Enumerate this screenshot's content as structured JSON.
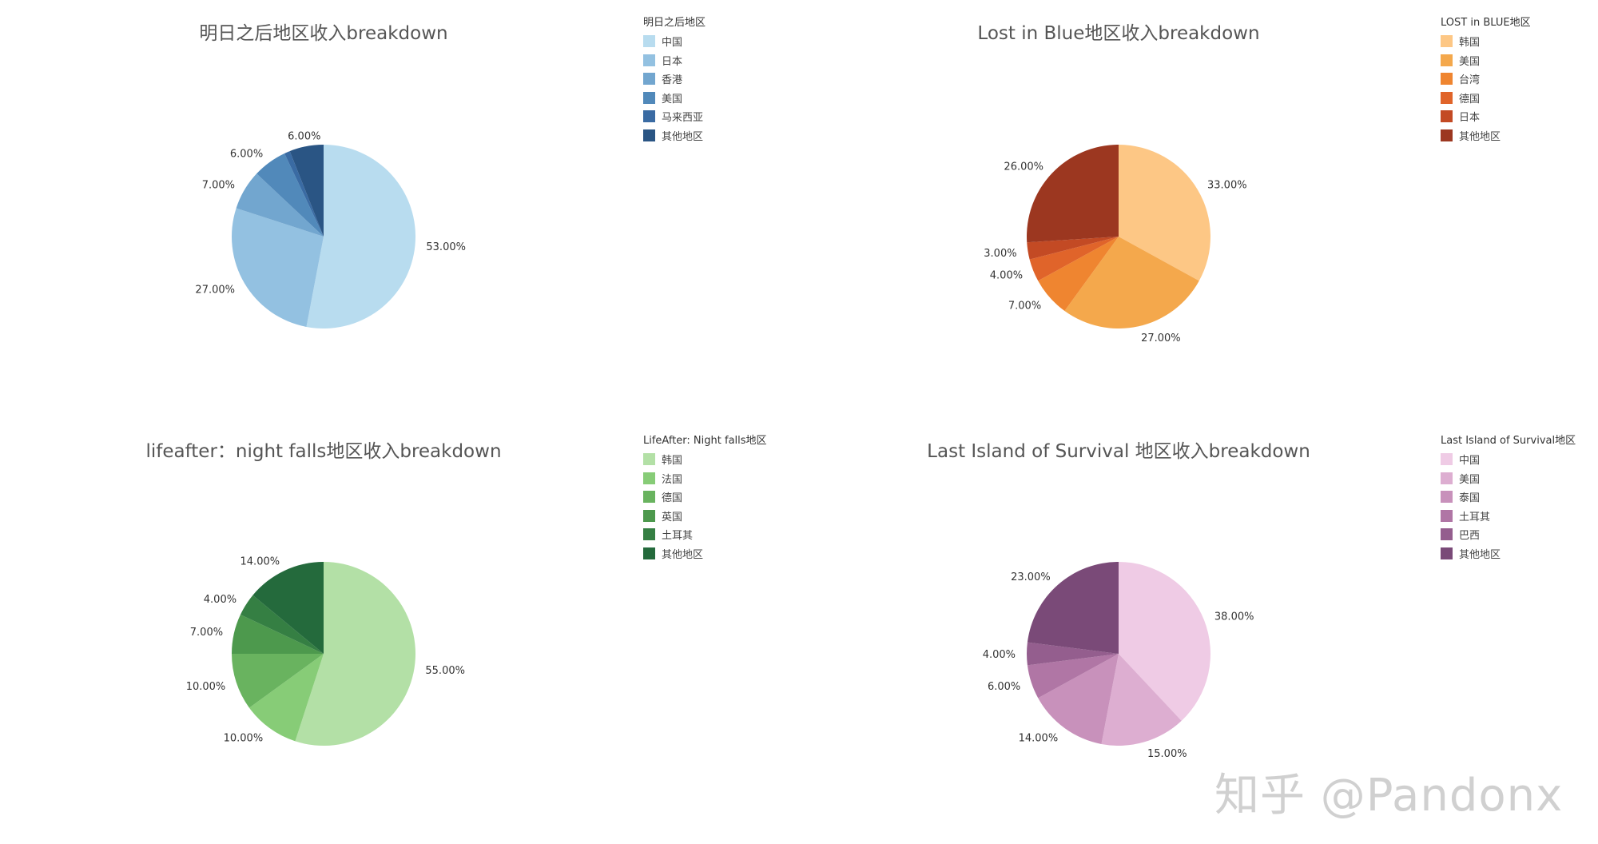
{
  "watermark": "知乎 @Pandonx",
  "chart_data": [
    {
      "type": "pie",
      "title": "明日之后地区收入breakdown",
      "legend_title": "明日之后地区",
      "legend_position": "top-right",
      "slices": [
        {
          "label": "中国",
          "value": 53.0,
          "display": "53.00%",
          "color": "#b8dcef"
        },
        {
          "label": "日本",
          "value": 27.0,
          "display": "27.00%",
          "color": "#93c1e1"
        },
        {
          "label": "香港",
          "value": 7.0,
          "display": "7.00%",
          "color": "#72a6cf"
        },
        {
          "label": "美国",
          "value": 6.0,
          "display": "6.00%",
          "color": "#5189ba"
        },
        {
          "label": "马来西亚",
          "value": 1.0,
          "display": "",
          "color": "#3a6ba3"
        },
        {
          "label": "其他地区",
          "value": 6.0,
          "display": "6.00%",
          "color": "#2a5584"
        }
      ]
    },
    {
      "type": "pie",
      "title": "Lost in Blue地区收入breakdown",
      "legend_title": "LOST in BLUE地区",
      "legend_position": "top-right",
      "slices": [
        {
          "label": "韩国",
          "value": 33.0,
          "display": "33.00%",
          "color": "#fdc785"
        },
        {
          "label": "美国",
          "value": 27.0,
          "display": "27.00%",
          "color": "#f4a84c"
        },
        {
          "label": "台湾",
          "value": 7.0,
          "display": "7.00%",
          "color": "#ef8530"
        },
        {
          "label": "德国",
          "value": 4.0,
          "display": "4.00%",
          "color": "#e0642a"
        },
        {
          "label": "日本",
          "value": 3.0,
          "display": "3.00%",
          "color": "#c34a24"
        },
        {
          "label": "其他地区",
          "value": 26.0,
          "display": "26.00%",
          "color": "#9c3720"
        }
      ]
    },
    {
      "type": "pie",
      "title": "lifeafter：night falls地区收入breakdown",
      "legend_title": "LifeAfter: Night falls地区",
      "legend_position": "top-right",
      "slices": [
        {
          "label": "韩国",
          "value": 55.0,
          "display": "55.00%",
          "color": "#b3e0a6"
        },
        {
          "label": "法国",
          "value": 10.0,
          "display": "10.00%",
          "color": "#87cc77"
        },
        {
          "label": "德国",
          "value": 10.0,
          "display": "10.00%",
          "color": "#69b35f"
        },
        {
          "label": "英国",
          "value": 7.0,
          "display": "7.00%",
          "color": "#4d994d"
        },
        {
          "label": "土耳其",
          "value": 4.0,
          "display": "4.00%",
          "color": "#357f43"
        },
        {
          "label": "其他地区",
          "value": 14.0,
          "display": "14.00%",
          "color": "#246a3c"
        }
      ]
    },
    {
      "type": "pie",
      "title": "Last Island of Survival 地区收入breakdown",
      "legend_title": "Last Island of Survival地区",
      "legend_position": "top-right",
      "slices": [
        {
          "label": "中国",
          "value": 38.0,
          "display": "38.00%",
          "color": "#efcbe5"
        },
        {
          "label": "美国",
          "value": 15.0,
          "display": "15.00%",
          "color": "#ddaed1"
        },
        {
          "label": "泰国",
          "value": 14.0,
          "display": "14.00%",
          "color": "#c891bb"
        },
        {
          "label": "土耳其",
          "value": 6.0,
          "display": "6.00%",
          "color": "#b076a5"
        },
        {
          "label": "巴西",
          "value": 4.0,
          "display": "4.00%",
          "color": "#945e8e"
        },
        {
          "label": "其他地区",
          "value": 23.0,
          "display": "23.00%",
          "color": "#7a4a78"
        }
      ]
    }
  ]
}
